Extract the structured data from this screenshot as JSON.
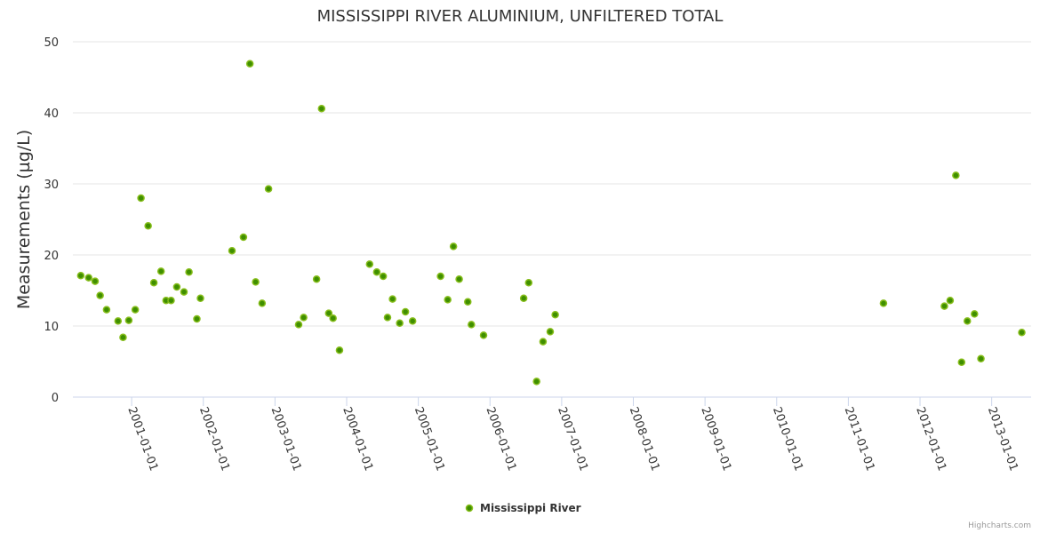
{
  "chart_data": {
    "type": "scatter",
    "title": "MISSISSIPPI RIVER ALUMINIUM, UNFILTERED TOTAL",
    "xlabel": "",
    "ylabel": "Measurements (µg/L)",
    "ylim": [
      0,
      50
    ],
    "xlim": [
      2000.18,
      2013.55
    ],
    "yticks": [
      0,
      10,
      20,
      30,
      40,
      50
    ],
    "xticks": [
      {
        "value": 2001,
        "label": "2001-01-01"
      },
      {
        "value": 2002,
        "label": "2002-01-01"
      },
      {
        "value": 2003,
        "label": "2003-01-01"
      },
      {
        "value": 2004,
        "label": "2004-01-01"
      },
      {
        "value": 2005,
        "label": "2005-01-01"
      },
      {
        "value": 2006,
        "label": "2006-01-01"
      },
      {
        "value": 2007,
        "label": "2007-01-01"
      },
      {
        "value": 2008,
        "label": "2008-01-01"
      },
      {
        "value": 2009,
        "label": "2009-01-01"
      },
      {
        "value": 2010,
        "label": "2010-01-01"
      },
      {
        "value": 2011,
        "label": "2011-01-01"
      },
      {
        "value": 2012,
        "label": "2012-01-01"
      },
      {
        "value": 2013,
        "label": "2013-01-01"
      }
    ],
    "grid": true,
    "legend_position": "bottom-center",
    "series": [
      {
        "name": "Mississippi River",
        "color": "#7cb518",
        "points": [
          [
            2000.29,
            17.1
          ],
          [
            2000.4,
            16.8
          ],
          [
            2000.49,
            16.3
          ],
          [
            2000.56,
            14.3
          ],
          [
            2000.65,
            12.3
          ],
          [
            2000.81,
            10.7
          ],
          [
            2000.88,
            8.4
          ],
          [
            2000.96,
            10.8
          ],
          [
            2001.05,
            12.3
          ],
          [
            2001.13,
            28.0
          ],
          [
            2001.23,
            24.1
          ],
          [
            2001.31,
            16.1
          ],
          [
            2001.41,
            17.7
          ],
          [
            2001.48,
            13.6
          ],
          [
            2001.55,
            13.6
          ],
          [
            2001.63,
            15.5
          ],
          [
            2001.73,
            14.8
          ],
          [
            2001.8,
            17.6
          ],
          [
            2001.91,
            11.0
          ],
          [
            2001.96,
            13.9
          ],
          [
            2002.4,
            20.6
          ],
          [
            2002.56,
            22.5
          ],
          [
            2002.65,
            46.9
          ],
          [
            2002.73,
            16.2
          ],
          [
            2002.82,
            13.2
          ],
          [
            2002.91,
            29.3
          ],
          [
            2003.33,
            10.2
          ],
          [
            2003.4,
            11.2
          ],
          [
            2003.58,
            16.6
          ],
          [
            2003.65,
            40.6
          ],
          [
            2003.75,
            11.8
          ],
          [
            2003.81,
            11.1
          ],
          [
            2003.9,
            6.6
          ],
          [
            2004.32,
            18.7
          ],
          [
            2004.42,
            17.6
          ],
          [
            2004.51,
            17.0
          ],
          [
            2004.57,
            11.2
          ],
          [
            2004.64,
            13.8
          ],
          [
            2004.74,
            10.4
          ],
          [
            2004.82,
            12.0
          ],
          [
            2004.92,
            10.7
          ],
          [
            2005.31,
            17.0
          ],
          [
            2005.41,
            13.7
          ],
          [
            2005.49,
            21.2
          ],
          [
            2005.57,
            16.6
          ],
          [
            2005.69,
            13.4
          ],
          [
            2005.74,
            10.2
          ],
          [
            2005.91,
            8.7
          ],
          [
            2006.47,
            13.9
          ],
          [
            2006.54,
            16.1
          ],
          [
            2006.65,
            2.2
          ],
          [
            2006.74,
            7.8
          ],
          [
            2006.84,
            9.2
          ],
          [
            2006.91,
            11.6
          ],
          [
            2011.49,
            13.2
          ],
          [
            2012.34,
            12.8
          ],
          [
            2012.42,
            13.6
          ],
          [
            2012.5,
            31.2
          ],
          [
            2012.58,
            4.9
          ],
          [
            2012.66,
            10.7
          ],
          [
            2012.76,
            11.7
          ],
          [
            2012.85,
            5.4
          ],
          [
            2013.42,
            9.1
          ]
        ]
      }
    ]
  },
  "credit": "Highcharts.com"
}
